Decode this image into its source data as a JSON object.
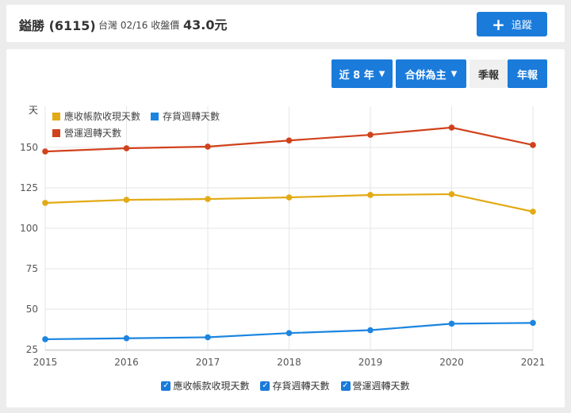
{
  "header": {
    "stock_name": "鎰勝 (6115)",
    "market": "台灣",
    "date": "02/16",
    "price_label": "收盤價",
    "price": "43.0元",
    "track_button": "追蹤",
    "track_icon": "plus-icon"
  },
  "controls": {
    "range": "近 8 年",
    "consolidation": "合併為主",
    "quarterly": "季報",
    "annual": "年報",
    "active_period": "年報"
  },
  "colors": {
    "accent": "#1a7bdb",
    "receivable_days": "#e2aa14",
    "inventory_days": "#1c85e0",
    "operating_days": "#d0421c"
  },
  "chart_data": {
    "type": "line",
    "title": "",
    "xlabel": "",
    "ylabel": "天",
    "x": [
      "2015",
      "2016",
      "2017",
      "2018",
      "2019",
      "2020",
      "2021"
    ],
    "yticks": [
      25,
      50,
      75,
      100,
      125,
      150
    ],
    "ylim": [
      24,
      171
    ],
    "grid": true,
    "legend_position": "top-left inside; bottom checkbox legend",
    "series": [
      {
        "name": "應收帳款收現天數",
        "color": "#e2aa14",
        "values": [
          115.7,
          117.6,
          118.1,
          119.1,
          120.6,
          121.1,
          110.3
        ]
      },
      {
        "name": "存貨週轉天數",
        "color": "#1c85e0",
        "values": [
          31.4,
          32.0,
          32.6,
          35.2,
          37.0,
          41.0,
          41.5
        ]
      },
      {
        "name": "營運週轉天數",
        "color": "#d0421c",
        "values": [
          147.5,
          149.5,
          150.5,
          154.3,
          157.8,
          162.3,
          151.5
        ]
      }
    ]
  },
  "legend_bottom": [
    {
      "label": "應收帳款收現天數",
      "checked": true
    },
    {
      "label": "存貨週轉天數",
      "checked": true
    },
    {
      "label": "營運週轉天數",
      "checked": true
    }
  ]
}
